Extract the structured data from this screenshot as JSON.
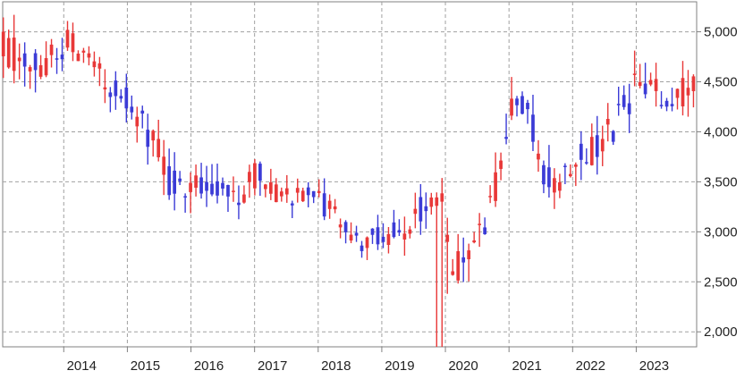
{
  "chart_data": {
    "type": "candlestick",
    "title": "",
    "xlabel": "",
    "ylabel": "",
    "ylim": [
      1850,
      5300
    ],
    "y_ticks": [
      {
        "value": 2000,
        "label": "2,000"
      },
      {
        "value": 2500,
        "label": "2,500"
      },
      {
        "value": 3000,
        "label": "3,000"
      },
      {
        "value": 3500,
        "label": "3,500"
      },
      {
        "value": 4000,
        "label": "4,000"
      },
      {
        "value": 4500,
        "label": "4,500"
      },
      {
        "value": 5000,
        "label": "5,000"
      }
    ],
    "x_ticks": [
      {
        "value": 2014,
        "label": "2014"
      },
      {
        "value": 2015,
        "label": "2015"
      },
      {
        "value": 2016,
        "label": "2016"
      },
      {
        "value": 2017,
        "label": "2017"
      },
      {
        "value": 2018,
        "label": "2018"
      },
      {
        "value": 2019,
        "label": "2019"
      },
      {
        "value": 2020,
        "label": "2020"
      },
      {
        "value": 2021,
        "label": "2021"
      },
      {
        "value": 2022,
        "label": "2022"
      },
      {
        "value": 2023,
        "label": "2023"
      }
    ],
    "xlim": [
      2013.04,
      2023.95
    ],
    "grid": true,
    "y_axis_position": "right",
    "colors": {
      "up": "#e83838",
      "down": "#3b3bd6",
      "grid": "#a0a0a0",
      "axis": "#808080"
    },
    "anchors": [
      {
        "x": 2013.05,
        "y": 4850,
        "v": 260
      },
      {
        "x": 2013.45,
        "y": 4650,
        "v": 260
      },
      {
        "x": 2013.75,
        "y": 4700,
        "v": 240
      },
      {
        "x": 2014.1,
        "y": 4900,
        "v": 200
      },
      {
        "x": 2014.55,
        "y": 4550,
        "v": 220
      },
      {
        "x": 2014.8,
        "y": 4450,
        "v": 200
      },
      {
        "x": 2015.1,
        "y": 4250,
        "v": 240
      },
      {
        "x": 2015.4,
        "y": 3900,
        "v": 240
      },
      {
        "x": 2015.7,
        "y": 3450,
        "v": 220
      },
      {
        "x": 2016.05,
        "y": 3550,
        "v": 240
      },
      {
        "x": 2016.35,
        "y": 3500,
        "v": 240
      },
      {
        "x": 2016.75,
        "y": 3350,
        "v": 200
      },
      {
        "x": 2017.05,
        "y": 3600,
        "v": 180
      },
      {
        "x": 2017.4,
        "y": 3350,
        "v": 150
      },
      {
        "x": 2017.75,
        "y": 3380,
        "v": 150
      },
      {
        "x": 2018.05,
        "y": 3300,
        "v": 170
      },
      {
        "x": 2018.3,
        "y": 3150,
        "v": 170
      },
      {
        "x": 2018.55,
        "y": 2900,
        "v": 170
      },
      {
        "x": 2018.8,
        "y": 2900,
        "v": 160
      },
      {
        "x": 2019.05,
        "y": 3000,
        "v": 190
      },
      {
        "x": 2019.4,
        "y": 3000,
        "v": 210
      },
      {
        "x": 2019.7,
        "y": 3300,
        "v": 210
      },
      {
        "x": 2019.95,
        "y": 3450,
        "v": 220
      },
      {
        "x": 2020.1,
        "y": 2500,
        "v": 260
      },
      {
        "x": 2020.4,
        "y": 2950,
        "v": 260
      },
      {
        "x": 2020.65,
        "y": 3100,
        "v": 250
      },
      {
        "x": 2020.9,
        "y": 3700,
        "v": 260
      },
      {
        "x": 2021.05,
        "y": 4300,
        "v": 260
      },
      {
        "x": 2021.3,
        "y": 4200,
        "v": 260
      },
      {
        "x": 2021.55,
        "y": 3600,
        "v": 260
      },
      {
        "x": 2021.8,
        "y": 3500,
        "v": 260
      },
      {
        "x": 2022.05,
        "y": 3800,
        "v": 240
      },
      {
        "x": 2022.4,
        "y": 3800,
        "v": 240
      },
      {
        "x": 2022.7,
        "y": 4100,
        "v": 260
      },
      {
        "x": 2023.05,
        "y": 4500,
        "v": 270
      },
      {
        "x": 2023.4,
        "y": 4300,
        "v": 250
      },
      {
        "x": 2023.9,
        "y": 4450,
        "v": 240
      }
    ],
    "spikes": [
      {
        "x": 2019.9,
        "low": 1850
      },
      {
        "x": 2020.0,
        "low": 2380
      }
    ],
    "count": 130,
    "seed": 7
  }
}
